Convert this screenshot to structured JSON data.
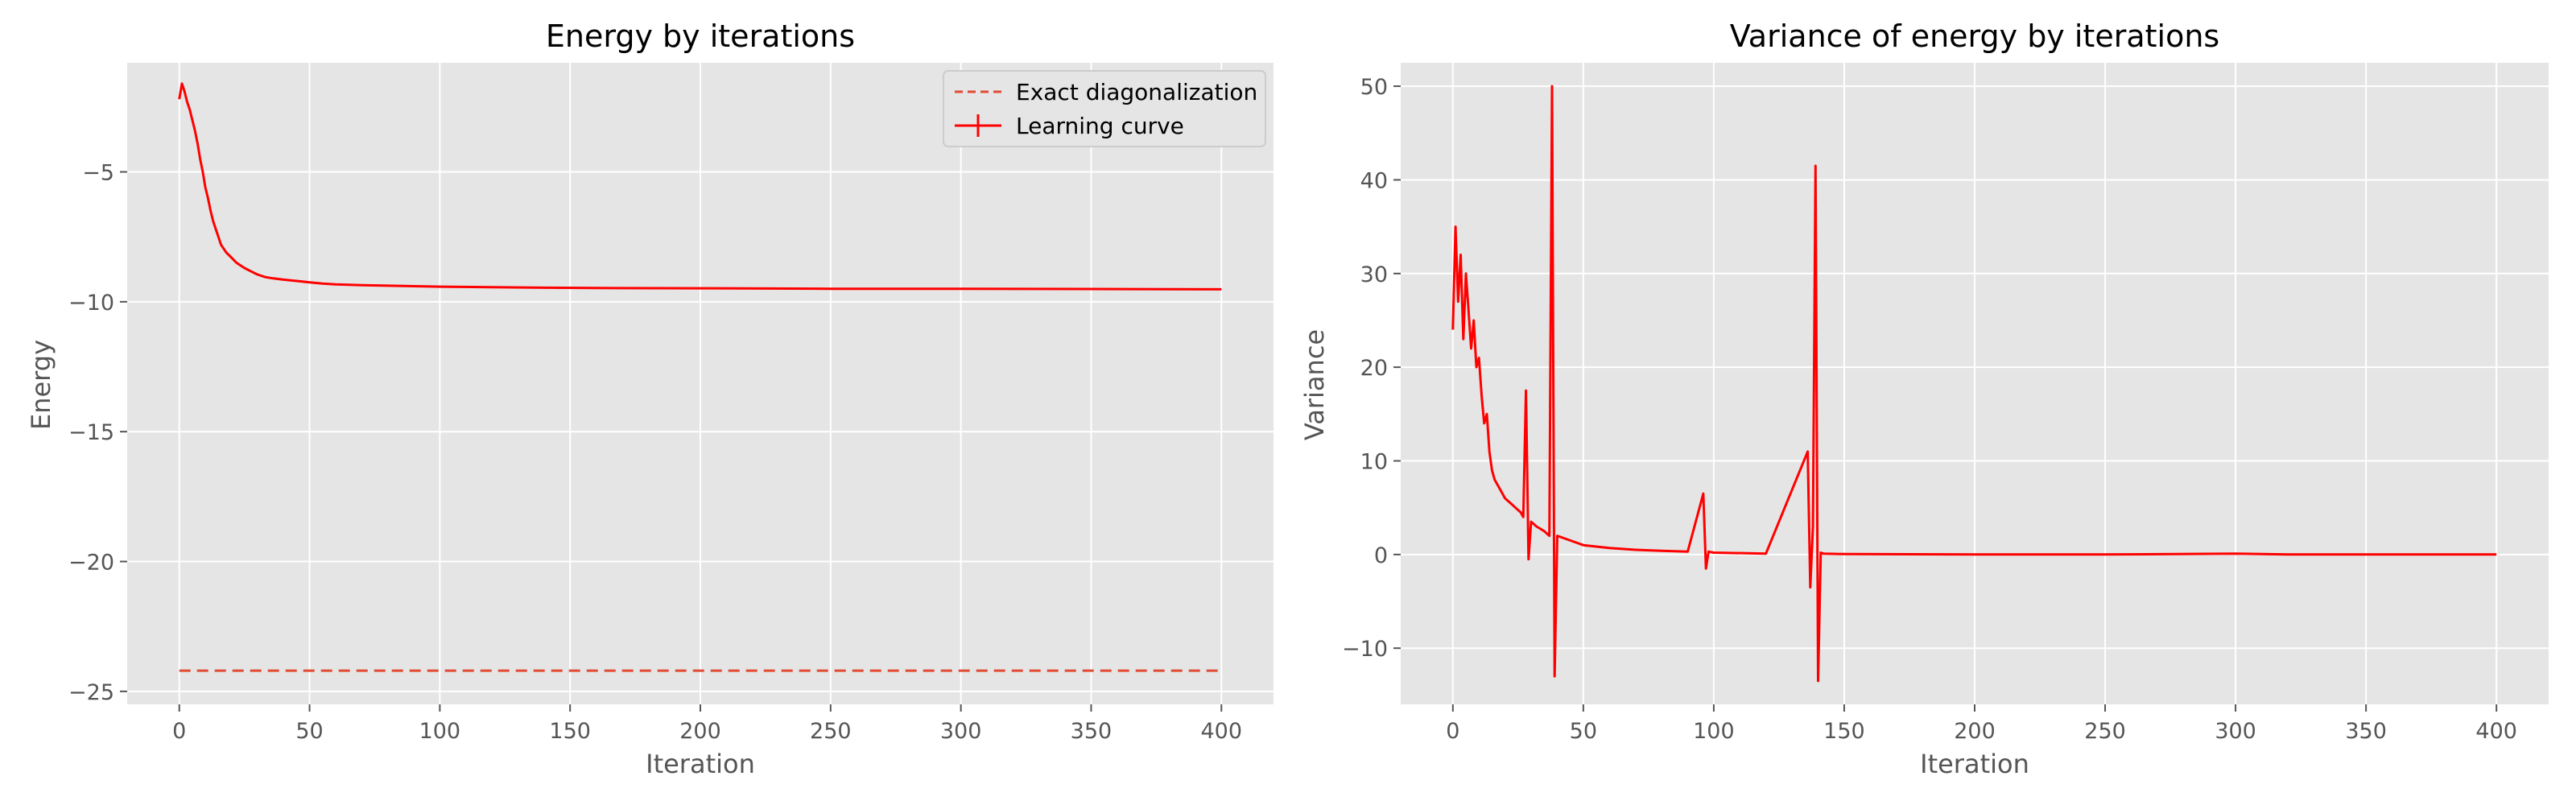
{
  "chart_data": [
    {
      "type": "line",
      "title": "Energy by iterations",
      "xlabel": "Iteration",
      "ylabel": "Energy",
      "xlim": [
        -20,
        420
      ],
      "ylim": [
        -25.5,
        -0.8
      ],
      "xticks": [
        0,
        50,
        100,
        150,
        200,
        250,
        300,
        350,
        400
      ],
      "yticks": [
        -25,
        -20,
        -15,
        -10,
        -5
      ],
      "grid": true,
      "legend": "top-right",
      "series": [
        {
          "name": "Exact diagonalization",
          "style": "dashed",
          "color": "#e24a33",
          "x": [
            0,
            400
          ],
          "y": [
            -24.2,
            -24.2
          ]
        },
        {
          "name": "Learning curve",
          "style": "solid",
          "errorbar": true,
          "color": "#ff0000",
          "x": [
            0,
            1,
            2,
            3,
            4,
            5,
            6,
            7,
            8,
            9,
            10,
            11,
            12,
            13,
            14,
            15,
            16,
            18,
            20,
            22,
            25,
            28,
            30,
            33,
            36,
            40,
            45,
            50,
            55,
            60,
            70,
            80,
            90,
            100,
            120,
            140,
            160,
            200,
            250,
            300,
            350,
            400
          ],
          "y": [
            -2.2,
            -1.6,
            -1.9,
            -2.3,
            -2.6,
            -3.0,
            -3.4,
            -3.9,
            -4.5,
            -5.0,
            -5.6,
            -6.0,
            -6.5,
            -6.9,
            -7.2,
            -7.5,
            -7.8,
            -8.1,
            -8.3,
            -8.5,
            -8.7,
            -8.85,
            -8.95,
            -9.05,
            -9.1,
            -9.15,
            -9.2,
            -9.25,
            -9.3,
            -9.33,
            -9.36,
            -9.38,
            -9.4,
            -9.42,
            -9.44,
            -9.46,
            -9.47,
            -9.48,
            -9.5,
            -9.5,
            -9.51,
            -9.52
          ]
        }
      ]
    },
    {
      "type": "line",
      "title": "Variance of energy by iterations",
      "xlabel": "Iteration",
      "ylabel": "Variance",
      "xlim": [
        -20,
        420
      ],
      "ylim": [
        -16,
        52.5
      ],
      "xticks": [
        0,
        50,
        100,
        150,
        200,
        250,
        300,
        350,
        400
      ],
      "yticks": [
        -10,
        0,
        10,
        20,
        30,
        40,
        50
      ],
      "grid": true,
      "series": [
        {
          "style": "solid",
          "color": "#ff0000",
          "x": [
            0,
            1,
            2,
            3,
            4,
            5,
            6,
            7,
            8,
            9,
            10,
            11,
            12,
            13,
            14,
            15,
            16,
            18,
            20,
            22,
            24,
            26,
            27,
            28,
            29,
            30,
            32,
            35,
            37,
            38,
            39,
            40,
            45,
            50,
            60,
            70,
            80,
            90,
            96,
            97,
            98,
            100,
            120,
            136,
            137,
            138,
            139,
            140,
            141,
            142,
            150,
            200,
            250,
            300,
            320,
            350,
            400
          ],
          "y": [
            24,
            35,
            27,
            32,
            23,
            30,
            26,
            22,
            25,
            20,
            21,
            17,
            14,
            15,
            11,
            9,
            8,
            7,
            6,
            5.5,
            5,
            4.5,
            4,
            17.5,
            -0.5,
            3.5,
            3,
            2.5,
            2,
            50,
            -13,
            2,
            1.5,
            1,
            0.7,
            0.5,
            0.4,
            0.3,
            6.5,
            -1.5,
            0.3,
            0.2,
            0.1,
            11,
            -3.5,
            3,
            41.5,
            -13.5,
            0.2,
            0.1,
            0.05,
            0,
            0,
            0.1,
            0,
            0,
            0
          ]
        }
      ]
    }
  ]
}
